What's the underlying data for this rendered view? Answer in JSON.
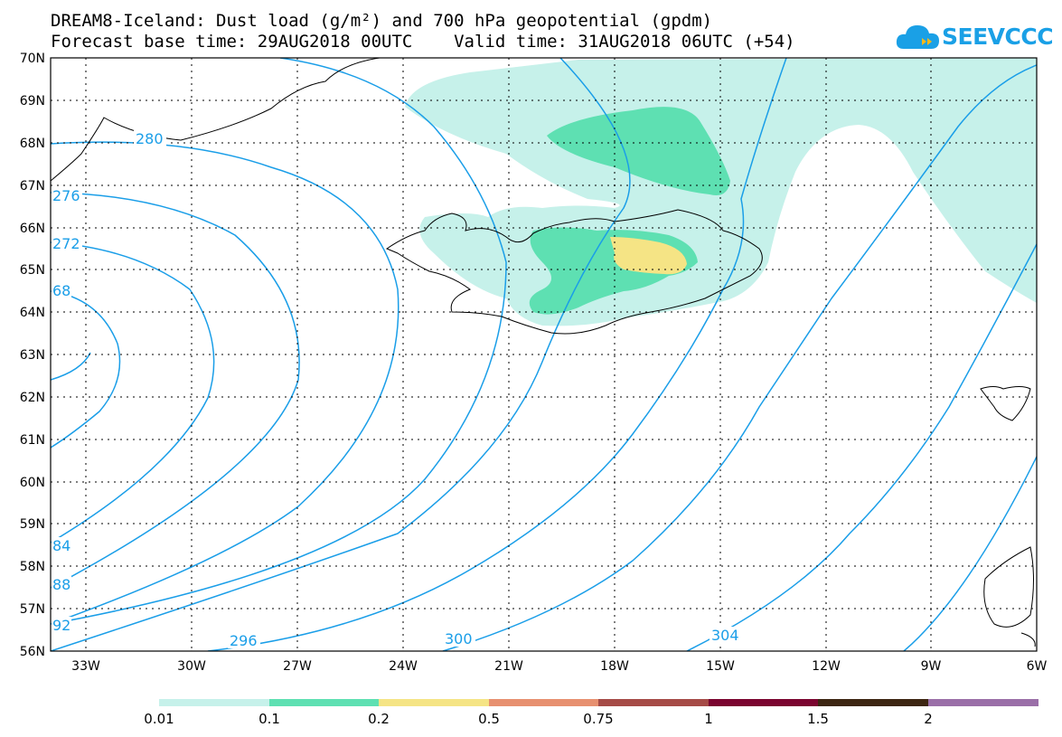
{
  "header": {
    "title_line1": "DREAM8-Iceland: Dust load (g/m²) and 700 hPa geopotential (gpdm)",
    "title_line2": "Forecast base time: 29AUG2018 00UTC    Valid time: 31AUG2018 06UTC (+54)"
  },
  "logo": {
    "text": "SEEVCCC",
    "icon": "cloud-icon",
    "color": "#1aa0e6"
  },
  "axes": {
    "lat_labels": [
      "70N",
      "69N",
      "68N",
      "67N",
      "66N",
      "65N",
      "64N",
      "63N",
      "62N",
      "61N",
      "60N",
      "59N",
      "58N",
      "57N",
      "56N"
    ],
    "lon_labels": [
      "33W",
      "30W",
      "27W",
      "24W",
      "21W",
      "18W",
      "15W",
      "12W",
      "9W",
      "6W"
    ]
  },
  "contour_labels": [
    "280",
    "276",
    "272",
    "68",
    "84",
    "88",
    "92",
    "296",
    "300",
    "304"
  ],
  "legend": {
    "thresholds": [
      "0.01",
      "0.1",
      "0.2",
      "0.5",
      "0.75",
      "1",
      "1.5",
      "2"
    ],
    "colors": [
      "#c6f1ea",
      "#5ee0b2",
      "#f5e485",
      "#e79070",
      "#a64b47",
      "#7b0530",
      "#3d2612",
      "#9a6fa8"
    ]
  }
}
